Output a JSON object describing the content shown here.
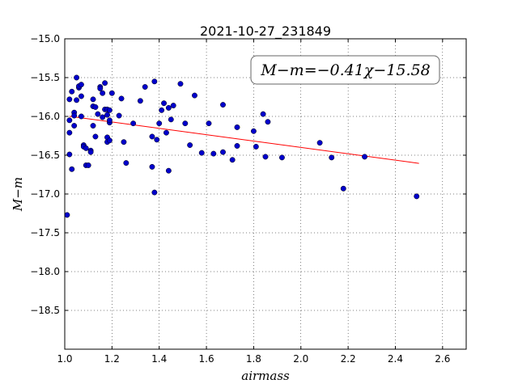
{
  "chart_data": {
    "type": "scatter",
    "title": "2021-10-27_231849",
    "xlabel": "airmass",
    "ylabel": "M−m",
    "xlim": [
      1.0,
      2.7
    ],
    "ylim": [
      -15.0,
      -19.0
    ],
    "y_inverted": true,
    "grid": true,
    "x_ticks": [
      "1.0",
      "1.2",
      "1.4",
      "1.6",
      "1.8",
      "2.0",
      "2.2",
      "2.4",
      "2.6"
    ],
    "y_ticks": [
      "−15.0",
      "−15.5",
      "−16.0",
      "−16.5",
      "−17.0",
      "−17.5",
      "−18.0",
      "−18.5"
    ],
    "annotation": "M−m=−0.41χ−15.58",
    "fit_line": {
      "slope": -0.41,
      "intercept": -15.58,
      "x_range": [
        1.02,
        2.5
      ],
      "color": "#ff0000"
    },
    "point_color": "#0000cc",
    "points": [
      [
        1.01,
        -17.27
      ],
      [
        1.02,
        -16.05
      ],
      [
        1.02,
        -16.21
      ],
      [
        1.02,
        -16.49
      ],
      [
        1.02,
        -15.78
      ],
      [
        1.03,
        -16.68
      ],
      [
        1.03,
        -15.68
      ],
      [
        1.04,
        -15.95
      ],
      [
        1.04,
        -15.99
      ],
      [
        1.04,
        -16.12
      ],
      [
        1.05,
        -15.5
      ],
      [
        1.05,
        -15.79
      ],
      [
        1.06,
        -15.63
      ],
      [
        1.06,
        -15.61
      ],
      [
        1.07,
        -15.59
      ],
      [
        1.07,
        -15.74
      ],
      [
        1.07,
        -16.0
      ],
      [
        1.08,
        -16.37
      ],
      [
        1.08,
        -16.39
      ],
      [
        1.09,
        -16.41
      ],
      [
        1.09,
        -16.63
      ],
      [
        1.1,
        -16.63
      ],
      [
        1.11,
        -16.44
      ],
      [
        1.11,
        -16.46
      ],
      [
        1.12,
        -15.87
      ],
      [
        1.12,
        -16.12
      ],
      [
        1.12,
        -15.78
      ],
      [
        1.13,
        -15.88
      ],
      [
        1.13,
        -16.26
      ],
      [
        1.14,
        -15.97
      ],
      [
        1.15,
        -15.62
      ],
      [
        1.15,
        -15.64
      ],
      [
        1.16,
        -16.01
      ],
      [
        1.16,
        -15.7
      ],
      [
        1.17,
        -15.91
      ],
      [
        1.17,
        -15.57
      ],
      [
        1.18,
        -15.91
      ],
      [
        1.18,
        -15.98
      ],
      [
        1.18,
        -16.27
      ],
      [
        1.18,
        -16.33
      ],
      [
        1.19,
        -16.08
      ],
      [
        1.19,
        -16.05
      ],
      [
        1.19,
        -15.92
      ],
      [
        1.19,
        -16.31
      ],
      [
        1.2,
        -15.7
      ],
      [
        1.23,
        -15.99
      ],
      [
        1.24,
        -15.77
      ],
      [
        1.25,
        -16.33
      ],
      [
        1.26,
        -16.6
      ],
      [
        1.29,
        -16.09
      ],
      [
        1.32,
        -15.8
      ],
      [
        1.34,
        -15.62
      ],
      [
        1.37,
        -16.26
      ],
      [
        1.37,
        -16.65
      ],
      [
        1.38,
        -15.55
      ],
      [
        1.38,
        -16.98
      ],
      [
        1.39,
        -16.3
      ],
      [
        1.4,
        -16.09
      ],
      [
        1.41,
        -15.92
      ],
      [
        1.42,
        -15.83
      ],
      [
        1.43,
        -16.21
      ],
      [
        1.44,
        -15.89
      ],
      [
        1.44,
        -16.7
      ],
      [
        1.45,
        -16.04
      ],
      [
        1.46,
        -15.86
      ],
      [
        1.49,
        -15.58
      ],
      [
        1.51,
        -16.09
      ],
      [
        1.53,
        -16.37
      ],
      [
        1.55,
        -15.73
      ],
      [
        1.58,
        -16.47
      ],
      [
        1.61,
        -16.09
      ],
      [
        1.63,
        -16.48
      ],
      [
        1.67,
        -15.85
      ],
      [
        1.67,
        -16.46
      ],
      [
        1.71,
        -16.56
      ],
      [
        1.73,
        -16.14
      ],
      [
        1.73,
        -16.38
      ],
      [
        1.8,
        -16.19
      ],
      [
        1.81,
        -16.39
      ],
      [
        1.84,
        -15.97
      ],
      [
        1.85,
        -16.52
      ],
      [
        1.86,
        -16.07
      ],
      [
        1.92,
        -16.53
      ],
      [
        2.08,
        -16.34
      ],
      [
        2.13,
        -16.53
      ],
      [
        2.18,
        -16.93
      ],
      [
        2.27,
        -16.52
      ],
      [
        2.49,
        -17.03
      ]
    ]
  }
}
